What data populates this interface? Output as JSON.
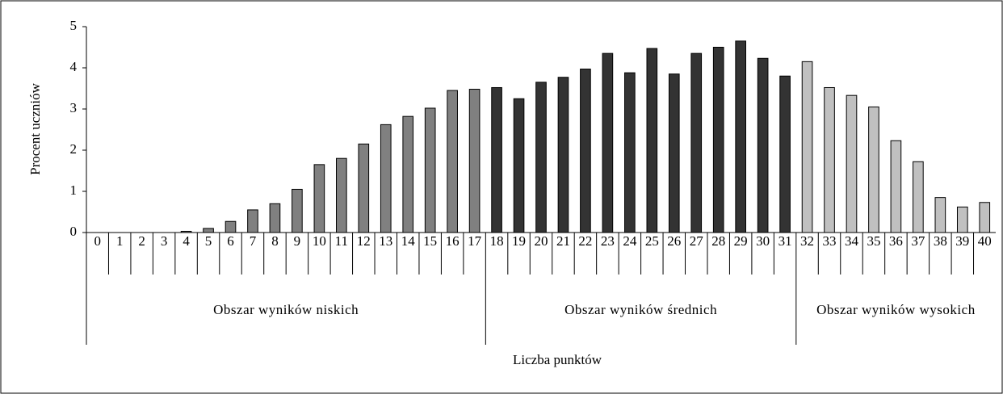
{
  "chart_data": {
    "type": "bar",
    "y_label": "Procent uczniów",
    "x_label": "Liczba punktów",
    "ylim": [
      0,
      5
    ],
    "yticks": [
      0,
      1,
      2,
      3,
      4,
      5
    ],
    "series": [
      {
        "name": "Obszar wyników niskich",
        "color": "#808080",
        "categories": [
          "0",
          "1",
          "2",
          "3",
          "4",
          "5",
          "6",
          "7",
          "8",
          "9",
          "10",
          "11",
          "12",
          "13",
          "14",
          "15",
          "16",
          "17"
        ],
        "values": [
          0,
          0,
          0,
          0,
          0.03,
          0.1,
          0.27,
          0.55,
          0.7,
          1.05,
          1.65,
          1.8,
          2.15,
          2.62,
          2.82,
          3.02,
          3.45,
          3.48
        ]
      },
      {
        "name": "Obszar wyników średnich",
        "color": "#333333",
        "categories": [
          "18",
          "19",
          "20",
          "21",
          "22",
          "23",
          "24",
          "25",
          "26",
          "27",
          "28",
          "29",
          "30",
          "31"
        ],
        "values": [
          3.52,
          3.25,
          3.65,
          3.77,
          3.97,
          4.35,
          3.88,
          4.47,
          3.85,
          4.35,
          4.5,
          4.65,
          4.23,
          3.8
        ]
      },
      {
        "name": "Obszar wyników wysokich",
        "color": "#c0c0c0",
        "categories": [
          "32",
          "33",
          "34",
          "35",
          "36",
          "37",
          "38",
          "39",
          "40"
        ],
        "values": [
          4.15,
          3.52,
          3.33,
          3.05,
          2.23,
          1.72,
          0.85,
          0.62,
          0.73
        ]
      }
    ]
  }
}
